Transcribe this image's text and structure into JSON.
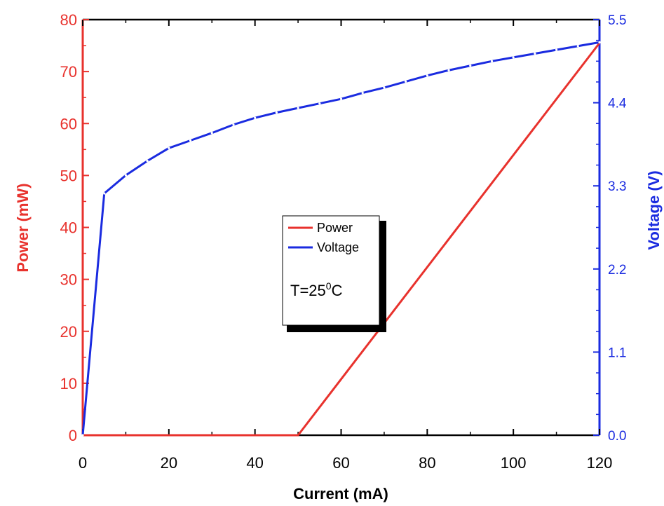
{
  "chart_data": {
    "type": "line",
    "xlabel": "Current (mA)",
    "ylabel": "Power (mW)",
    "y2label": "Voltage (V)",
    "xlim": [
      0,
      120
    ],
    "ylim": [
      0,
      80
    ],
    "y2lim": [
      0,
      5.5
    ],
    "x_ticks": [
      "0",
      "20",
      "40",
      "60",
      "80",
      "100",
      "120"
    ],
    "y_ticks": [
      "0",
      "10",
      "20",
      "30",
      "40",
      "50",
      "60",
      "70",
      "80"
    ],
    "y2_ticks": [
      "0.0",
      "1.1",
      "2.2",
      "3.3",
      "4.4",
      "5.5"
    ],
    "colors": {
      "power": "#e8322d",
      "voltage": "#1a2be0"
    },
    "legend_position": "center",
    "annotation": {
      "prefix": "T=25",
      "superscript": "0",
      "suffix": "C"
    },
    "series": [
      {
        "name": "Power",
        "axis": "left",
        "x": [
          0,
          50,
          120
        ],
        "y": [
          0,
          0,
          75.5
        ]
      },
      {
        "name": "Voltage",
        "axis": "right",
        "x": [
          0,
          5,
          10,
          15,
          20,
          25,
          30,
          35,
          40,
          45,
          50,
          55,
          60,
          65,
          70,
          75,
          80,
          85,
          90,
          95,
          100,
          105,
          110,
          115,
          120
        ],
        "y": [
          0,
          3.2,
          3.44,
          3.63,
          3.8,
          3.9,
          4.0,
          4.11,
          4.2,
          4.27,
          4.33,
          4.39,
          4.45,
          4.53,
          4.6,
          4.68,
          4.76,
          4.83,
          4.89,
          4.95,
          5.0,
          5.05,
          5.1,
          5.15,
          5.2
        ]
      }
    ]
  }
}
